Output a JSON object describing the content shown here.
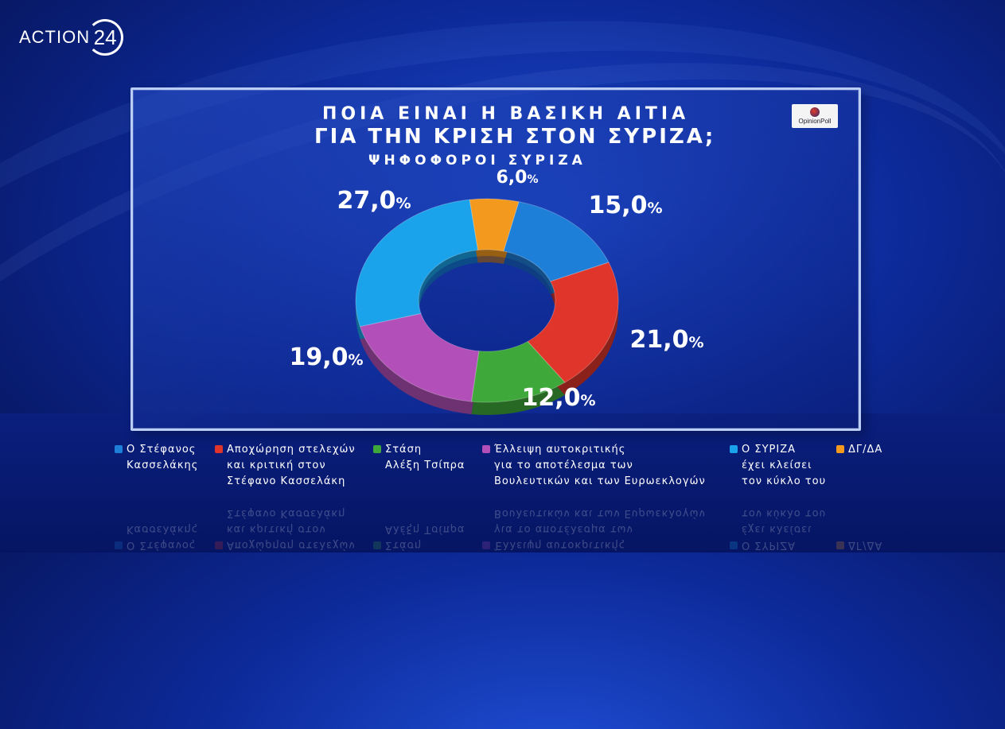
{
  "header": {
    "logo_text": "ACTION",
    "logo_number": "24"
  },
  "title": {
    "line1": "ΠΟΙΑ ΕΙΝΑΙ Η ΒΑΣΙΚΗ ΑΙΤΙΑ",
    "line2": "ΓΙΑ ΤΗΝ ΚΡΙΣΗ ΣΤΟΝ ΣΥΡΙΖΑ;",
    "line3": "ΨΗΦΟΦΟΡΟΙ ΣΥΡΙΖΑ"
  },
  "source": {
    "brand": "OpinionPoll"
  },
  "chart_data": {
    "type": "pie",
    "donut": true,
    "title": "ΠΟΙΑ ΕΙΝΑΙ Η ΒΑΣΙΚΗ ΑΙΤΙΑ ΓΙΑ ΤΗΝ ΚΡΙΣΗ ΣΤΟΝ ΣΥΡΙΖΑ;",
    "subtitle": "ΨΗΦΟΦΟΡΟΙ ΣΥΡΙΖΑ",
    "unit": "%",
    "legend_position": "bottom",
    "slices": [
      {
        "label": "Ο Στέφανος\nΚασσελάκης",
        "value": 15.0,
        "display": "15,0",
        "color": "#1e7fd8"
      },
      {
        "label": "Αποχώρηση στελεχών\nκαι κριτική στον\nΣτέφανο Κασσελάκη",
        "value": 21.0,
        "display": "21,0",
        "color": "#e0352b"
      },
      {
        "label": "Στάση\nΑλέξη Τσίπρα",
        "value": 12.0,
        "display": "12,0",
        "color": "#3fa83a"
      },
      {
        "label": "Έλλειψη αυτοκριτικής\nγια το αποτέλεσμα των\nΒουλευτικών και των Ευρωεκλογών",
        "value": 19.0,
        "display": "19,0",
        "color": "#b24fb8"
      },
      {
        "label": "Ο ΣΥΡΙΖΑ\nέχει κλείσει\nτον κύκλο του",
        "value": 27.0,
        "display": "27,0",
        "color": "#1aa3ea"
      },
      {
        "label": "ΔΓ/ΔΑ",
        "value": 6.0,
        "display": "6,0",
        "color": "#f39a1e"
      }
    ]
  }
}
